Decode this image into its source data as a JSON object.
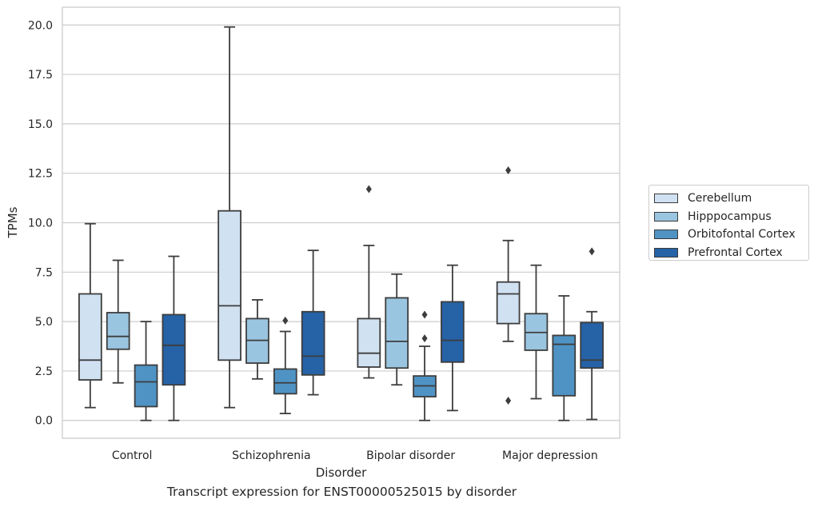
{
  "caption": "Transcript expression for ENST00000525015 by disorder",
  "chart_data": {
    "type": "box",
    "xlabel": "Disorder",
    "ylabel": "TPMs",
    "ylim": [
      -0.9,
      20.9
    ],
    "yticks": [
      0.0,
      2.5,
      5.0,
      7.5,
      10.0,
      12.5,
      15.0,
      17.5,
      20.0
    ],
    "ytick_labels": [
      "0.0",
      "2.5",
      "5.0",
      "7.5",
      "10.0",
      "12.5",
      "15.0",
      "17.5",
      "20.0"
    ],
    "grid": "horizontal",
    "legend_placement": "right",
    "categories": [
      "Control",
      "Schizophrenia",
      "Bipolar disorder",
      "Major depression"
    ],
    "series": [
      {
        "name": "Cerebellum",
        "color": "#d0e1f2",
        "boxes": [
          {
            "whislo": 0.65,
            "q1": 2.05,
            "med": 3.05,
            "q3": 6.4,
            "whishi": 9.95,
            "fliers": []
          },
          {
            "whislo": 0.65,
            "q1": 3.05,
            "med": 5.8,
            "q3": 10.6,
            "whishi": 19.9,
            "fliers": []
          },
          {
            "whislo": 2.15,
            "q1": 2.7,
            "med": 3.4,
            "q3": 5.15,
            "whishi": 8.85,
            "fliers": [
              11.7
            ]
          },
          {
            "whislo": 4.0,
            "q1": 4.9,
            "med": 6.4,
            "q3": 7.0,
            "whishi": 9.1,
            "fliers": [
              12.65,
              1.0
            ]
          }
        ]
      },
      {
        "name": "Hipppocampus",
        "color": "#9ac5e0",
        "boxes": [
          {
            "whislo": 1.9,
            "q1": 3.6,
            "med": 4.25,
            "q3": 5.45,
            "whishi": 8.1,
            "fliers": []
          },
          {
            "whislo": 2.1,
            "q1": 2.9,
            "med": 4.05,
            "q3": 5.15,
            "whishi": 6.1,
            "fliers": []
          },
          {
            "whislo": 1.8,
            "q1": 2.65,
            "med": 4.0,
            "q3": 6.2,
            "whishi": 7.4,
            "fliers": []
          },
          {
            "whislo": 1.1,
            "q1": 3.55,
            "med": 4.45,
            "q3": 5.4,
            "whishi": 7.85,
            "fliers": []
          }
        ]
      },
      {
        "name": "Orbitofontal Cortex",
        "color": "#4f93c4",
        "boxes": [
          {
            "whislo": 0.0,
            "q1": 0.7,
            "med": 1.95,
            "q3": 2.8,
            "whishi": 5.0,
            "fliers": []
          },
          {
            "whislo": 0.35,
            "q1": 1.35,
            "med": 1.9,
            "q3": 2.6,
            "whishi": 4.5,
            "fliers": [
              5.05
            ]
          },
          {
            "whislo": 0.0,
            "q1": 1.2,
            "med": 1.75,
            "q3": 2.25,
            "whishi": 3.75,
            "fliers": [
              5.35,
              4.15
            ]
          },
          {
            "whislo": 0.0,
            "q1": 1.25,
            "med": 3.85,
            "q3": 4.3,
            "whishi": 6.3,
            "fliers": []
          }
        ]
      },
      {
        "name": "Prefrontal Cortex",
        "color": "#2662a6",
        "boxes": [
          {
            "whislo": 0.0,
            "q1": 1.8,
            "med": 3.8,
            "q3": 5.35,
            "whishi": 8.3,
            "fliers": []
          },
          {
            "whislo": 1.3,
            "q1": 2.3,
            "med": 3.25,
            "q3": 5.5,
            "whishi": 8.6,
            "fliers": []
          },
          {
            "whislo": 0.5,
            "q1": 2.95,
            "med": 4.05,
            "q3": 6.0,
            "whishi": 7.85,
            "fliers": []
          },
          {
            "whislo": 0.05,
            "q1": 2.65,
            "med": 3.05,
            "q3": 4.95,
            "whishi": 5.5,
            "fliers": [
              8.55
            ]
          }
        ]
      }
    ]
  }
}
